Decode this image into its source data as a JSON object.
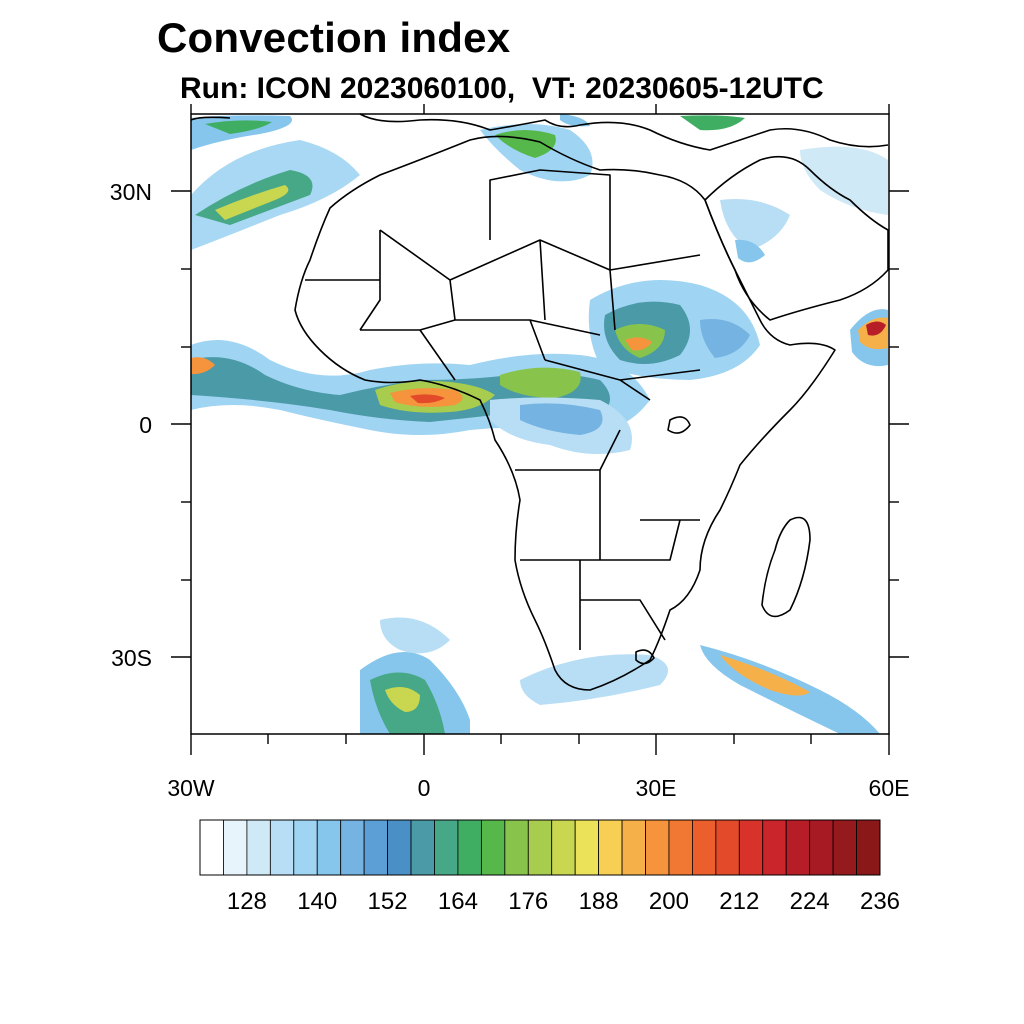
{
  "title": "Convection index",
  "subtitle": "Run: ICON 2023060100,  VT: 20230605-12UTC",
  "map": {
    "region": "Africa",
    "lat_labels": [
      "30N",
      "0",
      "30S"
    ],
    "lon_labels": [
      "30W",
      "0",
      "30E",
      "60E"
    ],
    "extent": {
      "lon": [
        -30,
        60
      ],
      "lat": [
        -40,
        40
      ]
    }
  },
  "colorbar": {
    "labels": [
      "128",
      "140",
      "152",
      "164",
      "176",
      "188",
      "200",
      "212",
      "224",
      "236"
    ],
    "colors": [
      "#ffffff",
      "#e8f4fb",
      "#cfe9f7",
      "#b8def5",
      "#9fd4f3",
      "#86c6ec",
      "#74b3e2",
      "#5c9fd6",
      "#4a90c6",
      "#4a9aa8",
      "#46a887",
      "#3fae63",
      "#56b84a",
      "#88c44c",
      "#a8cc4e",
      "#c8d650",
      "#ece25a",
      "#f7cf55",
      "#f5b049",
      "#f5943d",
      "#f07832",
      "#ec5f2c",
      "#e24a2a",
      "#d8332a",
      "#c9252b",
      "#b71d27",
      "#a81a23",
      "#951a1e",
      "#8a1818"
    ]
  }
}
